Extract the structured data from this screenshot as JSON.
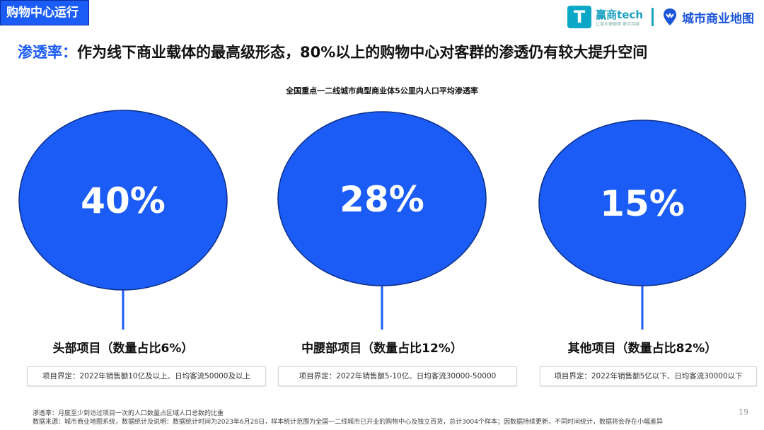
{
  "header": {
    "section_tag": "购物中心运行",
    "brand_left": "赢商tech",
    "brand_left_sub": "让商业更聪明 更可持续",
    "brand_right": "城市商业地图"
  },
  "headline": {
    "key": "渗透率：",
    "text": "作为线下商业载体的最高级形态，80%以上的购物中心对客群的渗透仍有较大提升空间"
  },
  "chart_data": {
    "type": "bubble",
    "title": "全国重点一二线城市典型商业体5公里内人口平均渗透率",
    "unit": "%",
    "categories": [
      "头部项目（数量占比6%）",
      "中腰部项目（数量占比12%）",
      "其他项目（数量占比82%）"
    ],
    "values": [
      40,
      28,
      15
    ],
    "value_labels": [
      "40%",
      "28%",
      "15%"
    ],
    "definitions": [
      "项目界定：2022年销售额10亿及以上、日均客流50000及以上",
      "项目界定：2022年销售额5-10亿、日均客流30000-50000",
      "项目界定：2022年销售额5亿以下、日均客流30000以下"
    ],
    "bubble_color": "#1a5cf5",
    "stem_color": "#1a5cf5"
  },
  "notes": {
    "definition": "渗透率：月度至少到访过项目一次的人口数量占区域人口总数的比重",
    "source": "数据来源：城市商业地图系统，数据统计及说明：数据统计时间为2023年6月28日，样本统计范围为全国一二线城市已开业的购物中心及独立百货，总计3004个样本；因数据持续更新，不同时间统计，数据将会存在小幅差异"
  },
  "page_number": "19"
}
